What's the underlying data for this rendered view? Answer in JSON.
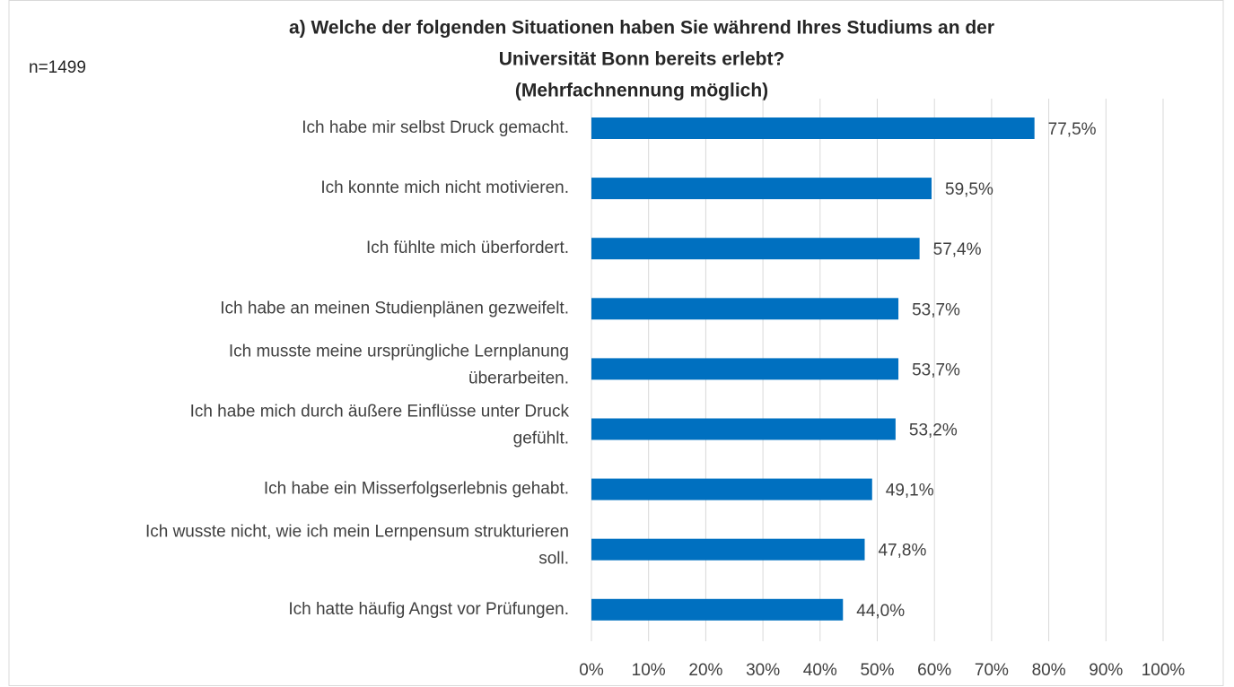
{
  "chart_data": {
    "type": "bar",
    "orientation": "horizontal",
    "title": [
      "a)  Welche der folgenden Situationen haben Sie während Ihres Studiums an der",
      "Universität Bonn bereits erlebt?",
      "(Mehrfachnennung möglich)"
    ],
    "annotation": "n=1499",
    "categories": [
      [
        "Ich habe mir selbst Druck gemacht."
      ],
      [
        "Ich konnte mich nicht motivieren."
      ],
      [
        "Ich fühlte mich überfordert."
      ],
      [
        "Ich habe an meinen Studienplänen gezweifelt."
      ],
      [
        "Ich musste meine ursprüngliche Lernplanung",
        "überarbeiten."
      ],
      [
        "Ich habe mich durch äußere Einflüsse unter Druck",
        "gefühlt."
      ],
      [
        "Ich habe ein Misserfolgserlebnis gehabt."
      ],
      [
        "Ich wusste nicht, wie ich mein Lernpensum strukturieren",
        "soll."
      ],
      [
        "Ich hatte häufig Angst vor Prüfungen."
      ]
    ],
    "values": [
      77.5,
      59.5,
      57.4,
      53.7,
      53.7,
      53.2,
      49.1,
      47.8,
      44.0
    ],
    "value_labels": [
      "77,5%",
      "59,5%",
      "57,4%",
      "53,7%",
      "53,7%",
      "53,2%",
      "49,1%",
      "47,8%",
      "44,0%"
    ],
    "color": "#0070c0",
    "xlim": [
      0,
      100
    ],
    "xticks": [
      {
        "value": 0,
        "label": "0%"
      },
      {
        "value": 10,
        "label": "10%"
      },
      {
        "value": 20,
        "label": "20%"
      },
      {
        "value": 30,
        "label": "30%"
      },
      {
        "value": 40,
        "label": "40%"
      },
      {
        "value": 50,
        "label": "50%"
      },
      {
        "value": 60,
        "label": "60%"
      },
      {
        "value": 70,
        "label": "70%"
      },
      {
        "value": 80,
        "label": "80%"
      },
      {
        "value": 90,
        "label": "90%"
      },
      {
        "value": 100,
        "label": "100%"
      }
    ],
    "grid": true
  }
}
